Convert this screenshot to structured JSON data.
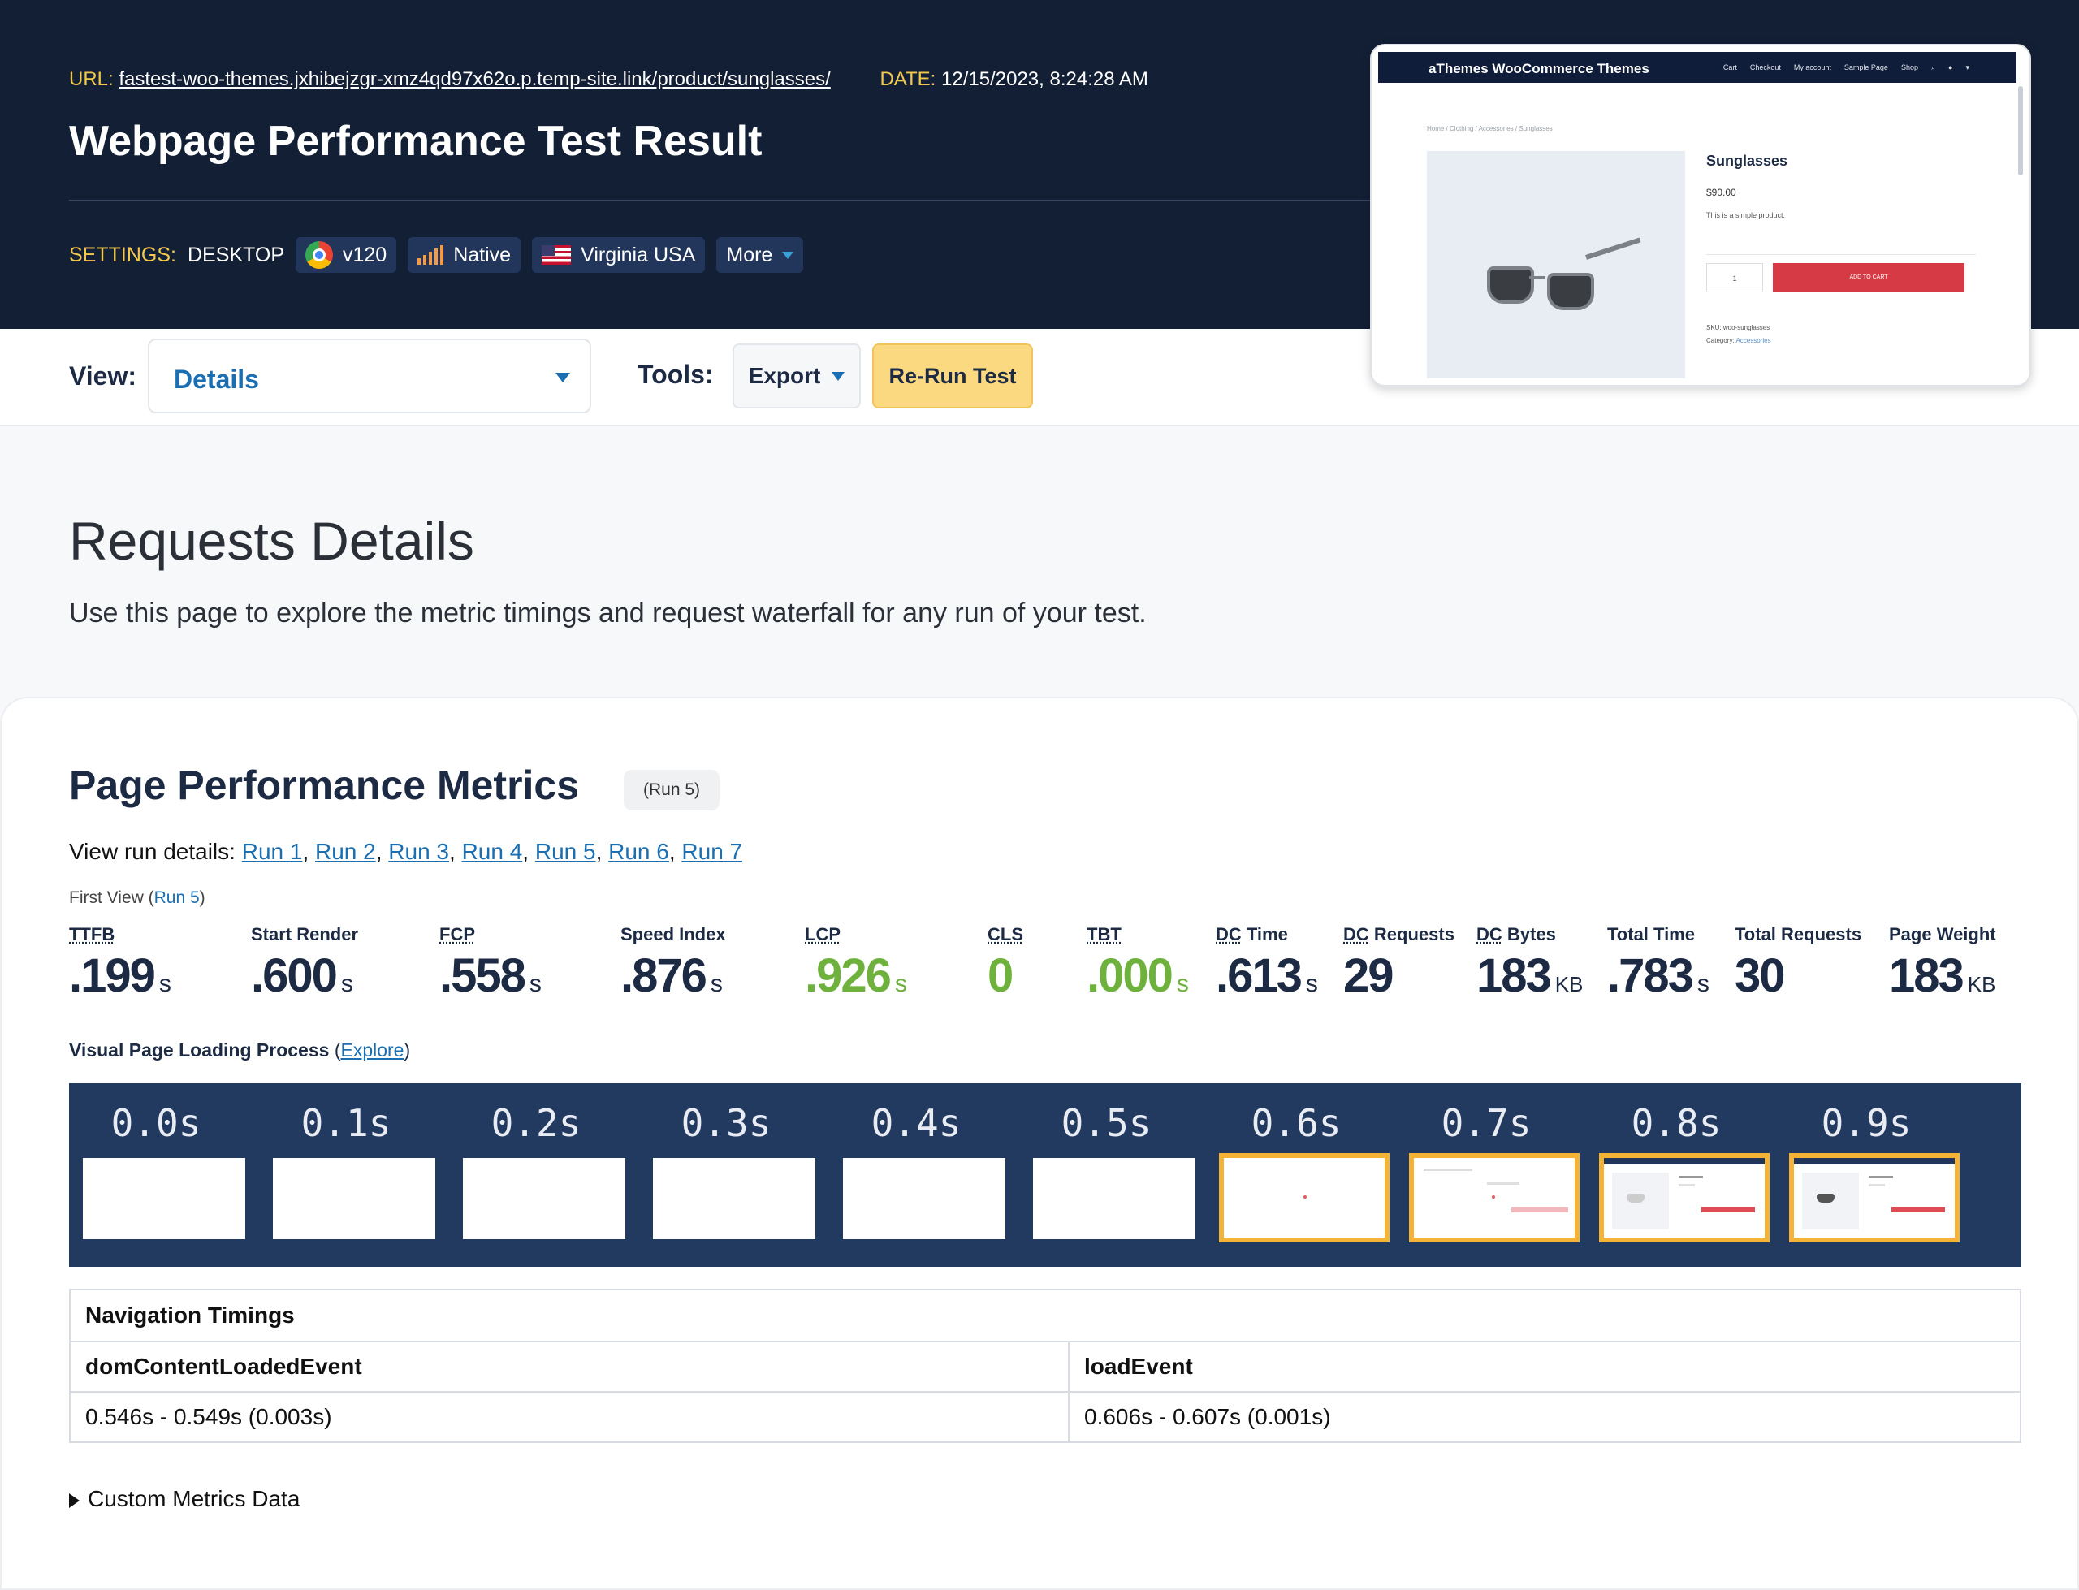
{
  "header": {
    "url_label": "URL:",
    "url": "fastest-woo-themes.jxhibejzgr-xmz4qd97x62o.p.temp-site.link/product/sunglasses/",
    "date_label": "DATE:",
    "date": "12/15/2023, 8:24:28 AM",
    "title": "Webpage Performance Test Result",
    "settings_label": "SETTINGS:",
    "device": "DESKTOP",
    "browser": "v120",
    "connection": "Native",
    "location": "Virginia USA",
    "more": "More"
  },
  "toolbar": {
    "view_label": "View:",
    "view_value": "Details",
    "tools_label": "Tools:",
    "export_label": "Export",
    "rerun_label": "Re-Run Test"
  },
  "thumbnail": {
    "brand": "aThemes WooCommerce Themes",
    "menu": [
      "Cart",
      "Checkout",
      "My account",
      "Sample Page",
      "Shop"
    ],
    "breadcrumb": "Home / Clothing / Accessories / Sunglasses",
    "product_title": "Sunglasses",
    "price": "$90.00",
    "description": "This is a simple product.",
    "qty": "1",
    "cart_button": "ADD TO CART",
    "sku": "SKU: woo-sunglasses",
    "category_label": "Category:",
    "category": "Accessories"
  },
  "intro": {
    "title": "Requests Details",
    "text": "Use this page to explore the metric timings and request waterfall for any run of your test."
  },
  "metrics_section": {
    "title": "Page Performance Metrics",
    "badge": "(Run 5)",
    "run_links_label": "View run details:",
    "runs": [
      "Run 1",
      "Run 2",
      "Run 3",
      "Run 4",
      "Run 5",
      "Run 6",
      "Run 7"
    ],
    "first_view_label": "First View",
    "first_view_run": "Run 5",
    "metrics": [
      {
        "label_abbr": "TTFB",
        "label_rest": "",
        "value": ".199",
        "unit": "s",
        "good": false
      },
      {
        "label_abbr": "",
        "label_rest": "Start Render",
        "value": ".600",
        "unit": "s",
        "good": false
      },
      {
        "label_abbr": "FCP",
        "label_rest": "",
        "value": ".558",
        "unit": "s",
        "good": false
      },
      {
        "label_abbr": "",
        "label_rest": "Speed Index",
        "value": ".876",
        "unit": "s",
        "good": false
      },
      {
        "label_abbr": "LCP",
        "label_rest": "",
        "value": ".926",
        "unit": "s",
        "good": true
      },
      {
        "label_abbr": "CLS",
        "label_rest": "",
        "value": "0",
        "unit": "",
        "good": true
      },
      {
        "label_abbr": "TBT",
        "label_rest": "",
        "value": ".000",
        "unit": "s",
        "good": true
      },
      {
        "label_abbr": "DC",
        "label_rest": " Time",
        "value": ".613",
        "unit": "s",
        "good": false
      },
      {
        "label_abbr": "DC",
        "label_rest": " Requests",
        "value": "29",
        "unit": "",
        "good": false
      },
      {
        "label_abbr": "DC",
        "label_rest": " Bytes",
        "value": "183",
        "unit": "KB",
        "good": false
      },
      {
        "label_abbr": "",
        "label_rest": "Total Time",
        "value": ".783",
        "unit": "s",
        "good": false
      },
      {
        "label_abbr": "",
        "label_rest": "Total Requests",
        "value": "30",
        "unit": "",
        "good": false
      },
      {
        "label_abbr": "",
        "label_rest": "Page Weight",
        "value": "183",
        "unit": "KB",
        "good": false
      }
    ]
  },
  "visual": {
    "label": "Visual Page Loading Process",
    "explore": "Explore",
    "frames": [
      "0.0s",
      "0.1s",
      "0.2s",
      "0.3s",
      "0.4s",
      "0.5s",
      "0.6s",
      "0.7s",
      "0.8s",
      "0.9s"
    ]
  },
  "navigation": {
    "title": "Navigation Timings",
    "col1_label": "domContentLoadedEvent",
    "col1_value": "0.546s - 0.549s (0.003s)",
    "col2_label": "loadEvent",
    "col2_value": "0.606s - 0.607s (0.001s)"
  },
  "custom_metrics": "Custom Metrics Data",
  "colors": {
    "header_bg": "#131f35",
    "accent_link": "#1a6fb3",
    "good_green": "#6fb13d",
    "highlight_frame": "#f5b335",
    "rerun_button": "#fbd980"
  }
}
